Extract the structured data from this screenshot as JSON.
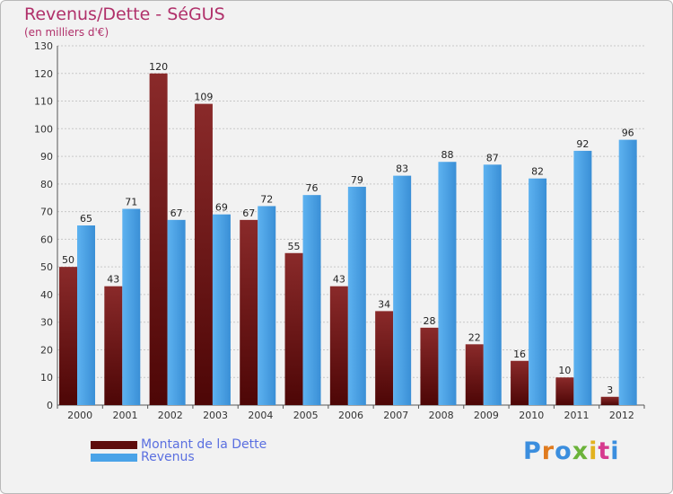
{
  "title": "Revenus/Dette - SéGUS",
  "subtitle": "(en milliers d'€)",
  "logo_text": "Proxiti",
  "colors": {
    "dette": "#7a1b1b",
    "revenus": "#4aa3e8",
    "title": "#b0306a",
    "legend_text": "#5a6fe0"
  },
  "legend": [
    {
      "label": "Montant de la Dette",
      "color": "#5e0c0c"
    },
    {
      "label": "Revenus",
      "color": "#4aa3e8"
    }
  ],
  "chart_data": {
    "type": "bar",
    "categories": [
      "2000",
      "2001",
      "2002",
      "2003",
      "2004",
      "2005",
      "2006",
      "2007",
      "2008",
      "2009",
      "2010",
      "2011",
      "2012"
    ],
    "series": [
      {
        "name": "Montant de la Dette",
        "values": [
          50,
          43,
          120,
          109,
          67,
          55,
          43,
          34,
          28,
          22,
          16,
          10,
          3
        ]
      },
      {
        "name": "Revenus",
        "values": [
          65,
          71,
          67,
          69,
          72,
          76,
          79,
          83,
          88,
          87,
          82,
          92,
          96
        ]
      }
    ],
    "ylim": [
      0,
      130
    ],
    "yticks": [
      0,
      10,
      20,
      30,
      40,
      50,
      60,
      70,
      80,
      90,
      100,
      110,
      120,
      130
    ],
    "grid": true,
    "legend_position": "bottom-left"
  }
}
